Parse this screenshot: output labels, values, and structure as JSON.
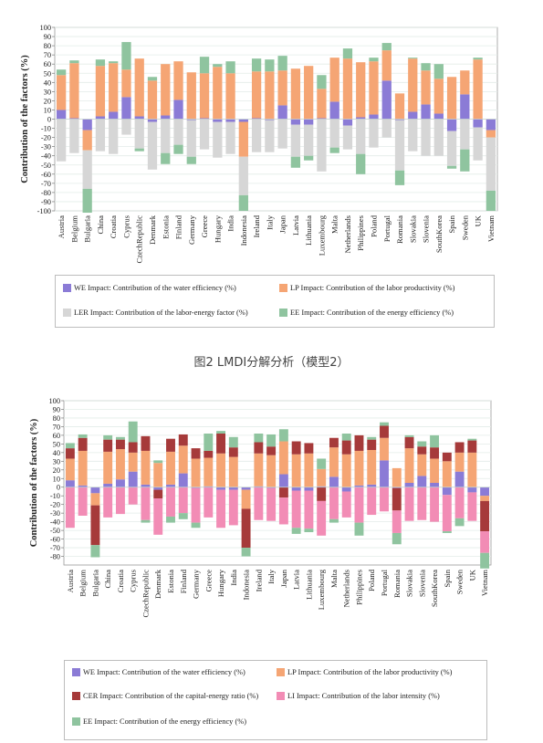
{
  "caption": "图2 LMDI分解分析（模型2）",
  "chart_data": [
    {
      "type": "bar",
      "stacked": true,
      "ylabel": "Contribution of the factors (%)",
      "ylim": [
        -100,
        100
      ],
      "yticks": [
        -100,
        -90,
        -80,
        -70,
        -60,
        -50,
        -40,
        -30,
        -20,
        -10,
        0,
        10,
        20,
        30,
        40,
        50,
        60,
        70,
        80,
        90,
        100
      ],
      "grid": true,
      "legend_position": "bottom",
      "categories": [
        "Austria",
        "Belgium",
        "Bulgaria",
        "China",
        "Croatia",
        "Cyprus",
        "CzechRepublic",
        "Denmark",
        "Estonia",
        "Finland",
        "Germany",
        "Greece",
        "Hungary",
        "India",
        "Indonesia",
        "Ireland",
        "Italy",
        "Japan",
        "Latvia",
        "Lithuania",
        "Luxembourg",
        "Malta",
        "Netherlands",
        "Philippines",
        "Poland",
        "Portugal",
        "Romania",
        "Slovakia",
        "Slovenia",
        "SouthKorea",
        "Spain",
        "Sweden",
        "UK",
        "Vietnam"
      ],
      "series": [
        {
          "key": "WE",
          "name": "WE Impact: Contribution of the water efficiency (%)",
          "color": "#8b7bd6",
          "values": [
            10,
            1,
            -12,
            3,
            8,
            24,
            3,
            -3,
            4,
            21,
            -1,
            1,
            -3,
            -3,
            -3,
            1,
            -1,
            15,
            -6,
            -6,
            1,
            19,
            -7,
            2,
            5,
            42,
            -1,
            8,
            16,
            6,
            -13,
            27,
            -9,
            -12
          ]
        },
        {
          "key": "LP",
          "name": "LP Impact: Contribution of the labor productivity (%)",
          "color": "#f5a574",
          "values": [
            38,
            60,
            -22,
            55,
            53,
            30,
            63,
            42,
            56,
            42,
            51,
            49,
            57,
            50,
            -38,
            51,
            52,
            38,
            55,
            58,
            32,
            48,
            66,
            60,
            58,
            33,
            28,
            58,
            37,
            38,
            46,
            26,
            65,
            -8
          ]
        },
        {
          "key": "LER",
          "name": "LER Impact: Contribution of the labor-energy factor (%)",
          "color": "#d6d6d6",
          "values": [
            -46,
            -37,
            -42,
            -35,
            -38,
            -17,
            -32,
            -52,
            -37,
            -28,
            -40,
            -33,
            -39,
            -35,
            -42,
            -36,
            -35,
            -32,
            -35,
            -34,
            -57,
            -31,
            -26,
            -38,
            -31,
            -20,
            -55,
            -35,
            -40,
            -40,
            -38,
            -33,
            -36,
            -58
          ]
        },
        {
          "key": "EE",
          "name": "EE Impact: Contribution of the energy efficiency (%)",
          "color": "#8fc49f",
          "values": [
            6,
            3,
            -26,
            7,
            2,
            30,
            -3,
            4,
            -12,
            -10,
            -8,
            18,
            3,
            13,
            -17,
            14,
            13,
            16,
            -12,
            -5,
            15,
            -6,
            11,
            -22,
            4,
            8,
            -16,
            1,
            8,
            16,
            -3,
            -24,
            2,
            -22
          ]
        }
      ],
      "legend": [
        {
          "key": "WE",
          "label": "WE Impact: Contribution of the water efficiency (%)",
          "color": "#8b7bd6"
        },
        {
          "key": "LP",
          "label": "LP Impact: Contribution of the labor productivity (%)",
          "color": "#f5a574"
        },
        {
          "key": "LER",
          "label": "LER Impact: Contribution of the labor-energy factor (%)",
          "color": "#d6d6d6"
        },
        {
          "key": "EE",
          "label": "EE Impact: Contribution of the energy efficiency (%)",
          "color": "#8fc49f"
        }
      ]
    },
    {
      "type": "bar",
      "stacked": true,
      "ylabel": "Contribution of the factors (%)",
      "ylim": [
        -90,
        100
      ],
      "yticks": [
        -80,
        -70,
        -60,
        -50,
        -40,
        -30,
        -20,
        -10,
        0,
        10,
        20,
        30,
        40,
        50,
        60,
        70,
        80,
        90,
        100
      ],
      "grid": true,
      "legend_position": "bottom",
      "categories": [
        "Austria",
        "Belgium",
        "Bulgaria",
        "China",
        "Croatia",
        "Cyprus",
        "CzechRepublic",
        "Denmark",
        "Estonia",
        "Finland",
        "Germany",
        "Greece",
        "Hungary",
        "India",
        "Indonesia",
        "Ireland",
        "Italy",
        "Japan",
        "Latvia",
        "Lithuania",
        "Luxembourg",
        "Malta",
        "Netherlands",
        "Philippines",
        "Poland",
        "Portugal",
        "Romania",
        "Slovakia",
        "Slovenia",
        "SouthKorea",
        "Spain",
        "Sweden",
        "UK",
        "Vietnam"
      ],
      "series": [
        {
          "key": "WE",
          "name": "WE Impact: Contribution of the water efficiency (%)",
          "color": "#8b7bd6",
          "values": [
            8,
            2,
            -7,
            4,
            9,
            18,
            3,
            -3,
            3,
            16,
            -1,
            1,
            -3,
            -3,
            -3,
            1,
            -1,
            15,
            -4,
            -4,
            1,
            12,
            -5,
            2,
            3,
            31,
            -1,
            5,
            13,
            5,
            -9,
            18,
            -6,
            -10
          ]
        },
        {
          "key": "LP",
          "name": "LP Impact: Contribution of the labor productivity (%)",
          "color": "#f5a574",
          "values": [
            25,
            40,
            -14,
            37,
            35,
            22,
            39,
            28,
            38,
            32,
            33,
            33,
            39,
            35,
            -22,
            38,
            37,
            38,
            38,
            39,
            20,
            34,
            38,
            40,
            40,
            26,
            22,
            40,
            25,
            28,
            30,
            22,
            40,
            -6
          ]
        },
        {
          "key": "CER",
          "name": "CER Impact: Contribution of the capital-energy ratio (%)",
          "color": "#a63a3a",
          "values": [
            12,
            15,
            -46,
            14,
            11,
            12,
            17,
            -10,
            15,
            13,
            12,
            8,
            23,
            11,
            -45,
            13,
            10,
            -12,
            15,
            12,
            -16,
            11,
            16,
            18,
            12,
            14,
            -26,
            13,
            9,
            13,
            10,
            12,
            14,
            -35
          ]
        },
        {
          "key": "LI",
          "name": "LI Impact: Contribution of the labor intensity (%)",
          "color": "#f28cb5",
          "values": [
            -47,
            -33,
            0,
            -35,
            -31,
            -20,
            -38,
            -42,
            -34,
            -30,
            -40,
            -35,
            -44,
            -41,
            0,
            -38,
            -38,
            -31,
            -43,
            -44,
            -40,
            -37,
            -30,
            -41,
            -32,
            -28,
            -26,
            -39,
            -38,
            -40,
            -42,
            -36,
            -33,
            -25
          ]
        },
        {
          "key": "EE",
          "name": "EE Impact: Contribution of the energy efficiency (%)",
          "color": "#8fc49f",
          "values": [
            6,
            4,
            -14,
            5,
            3,
            24,
            -3,
            3,
            -7,
            -7,
            -6,
            20,
            3,
            12,
            -10,
            10,
            14,
            14,
            -7,
            -4,
            12,
            -4,
            8,
            -15,
            3,
            4,
            -13,
            2,
            6,
            14,
            -2,
            -9,
            2,
            -18
          ]
        }
      ],
      "legend": [
        {
          "key": "WE",
          "label": "WE Impact: Contribution of the water efficiency (%)",
          "color": "#8b7bd6"
        },
        {
          "key": "LP",
          "label": "LP Impact: Contribution of the labor productivity (%)",
          "color": "#f5a574"
        },
        {
          "key": "CER",
          "label": "CER Impact: Contribution of the capital-energy ratio (%)",
          "color": "#a63a3a"
        },
        {
          "key": "LI",
          "label": "LI Impact: Contribution of the labor intensity (%)",
          "color": "#f28cb5"
        },
        {
          "key": "EE",
          "label": "EE Impact: Contribution of the energy efficiency (%)",
          "color": "#8fc49f"
        }
      ]
    }
  ]
}
